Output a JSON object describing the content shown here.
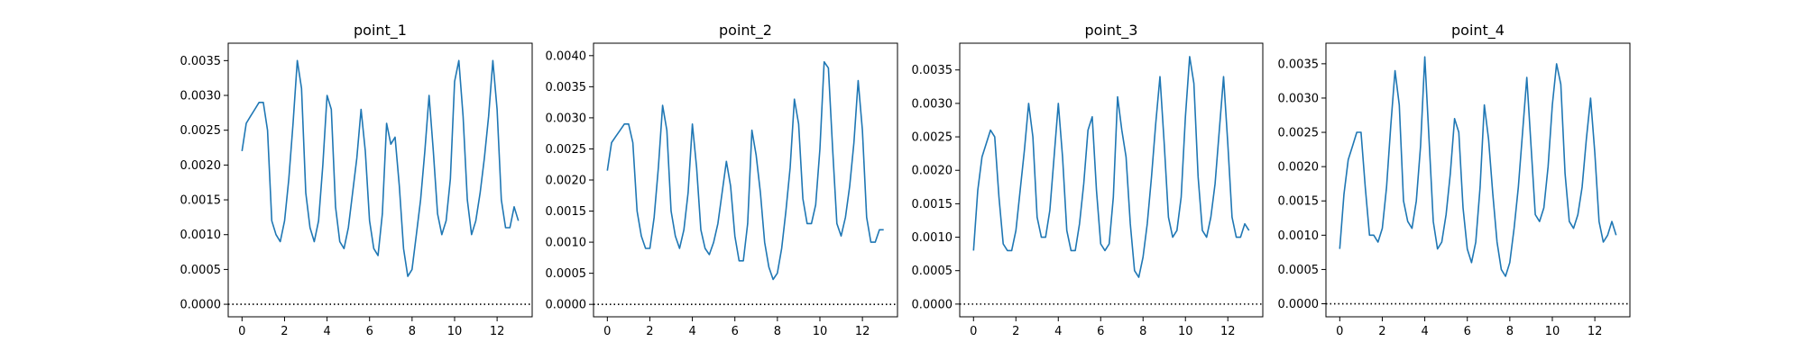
{
  "chart_data": [
    {
      "type": "line",
      "title": "point_1",
      "xlabel": "",
      "ylabel": "",
      "xlim": [
        -0.65,
        13.65
      ],
      "ylim": [
        -0.00018,
        0.00375
      ],
      "x_ticks": [
        0,
        2,
        4,
        6,
        8,
        10,
        12
      ],
      "x_tick_labels": [
        "0",
        "2",
        "4",
        "6",
        "8",
        "10",
        "12"
      ],
      "y_ticks": [
        0,
        0.0005,
        0.001,
        0.0015,
        0.002,
        0.0025,
        0.003,
        0.0035
      ],
      "y_tick_labels": [
        "0.0000",
        "0.0005",
        "0.0010",
        "0.0015",
        "0.0020",
        "0.0025",
        "0.0030",
        "0.0035"
      ],
      "grid": false,
      "series_color": "#1f77b4",
      "reference_line": {
        "y": 0,
        "style": "dotted",
        "color": "#000000"
      },
      "series": [
        {
          "x": [
            0,
            0.2,
            0.4,
            0.6,
            0.8,
            1.0,
            1.2,
            1.4,
            1.6,
            1.8,
            2.0,
            2.2,
            2.4,
            2.6,
            2.8,
            3.0,
            3.2,
            3.4,
            3.6,
            3.8,
            4.0,
            4.2,
            4.4,
            4.6,
            4.8,
            5.0,
            5.2,
            5.4,
            5.6,
            5.8,
            6.0,
            6.2,
            6.4,
            6.6,
            6.8,
            7.0,
            7.2,
            7.4,
            7.6,
            7.8,
            8.0,
            8.2,
            8.4,
            8.6,
            8.8,
            9.0,
            9.2,
            9.4,
            9.6,
            9.8,
            10.0,
            10.2,
            10.4,
            10.6,
            10.8,
            11.0,
            11.2,
            11.4,
            11.6,
            11.8,
            12.0,
            12.2,
            12.4,
            12.6,
            12.8,
            13.0
          ],
          "values": [
            0.0022,
            0.0026,
            0.0027,
            0.0028,
            0.0029,
            0.0029,
            0.0025,
            0.0012,
            0.001,
            0.0009,
            0.0012,
            0.0018,
            0.0026,
            0.0035,
            0.0031,
            0.0016,
            0.0011,
            0.0009,
            0.0012,
            0.002,
            0.003,
            0.0028,
            0.0014,
            0.0009,
            0.0008,
            0.0011,
            0.0016,
            0.0021,
            0.0028,
            0.0022,
            0.0012,
            0.0008,
            0.0007,
            0.0013,
            0.0026,
            0.0023,
            0.0024,
            0.0017,
            0.0008,
            0.0004,
            0.0005,
            0.001,
            0.0015,
            0.0022,
            0.003,
            0.0022,
            0.0013,
            0.001,
            0.0012,
            0.0018,
            0.0032,
            0.0035,
            0.0027,
            0.0015,
            0.001,
            0.0012,
            0.0016,
            0.0021,
            0.0027,
            0.0035,
            0.0028,
            0.0015,
            0.0011,
            0.0011,
            0.0014,
            0.0012
          ]
        }
      ]
    },
    {
      "type": "line",
      "title": "point_2",
      "xlabel": "",
      "ylabel": "",
      "xlim": [
        -0.65,
        13.65
      ],
      "ylim": [
        -0.0002,
        0.0042
      ],
      "x_ticks": [
        0,
        2,
        4,
        6,
        8,
        10,
        12
      ],
      "x_tick_labels": [
        "0",
        "2",
        "4",
        "6",
        "8",
        "10",
        "12"
      ],
      "y_ticks": [
        0,
        0.0005,
        0.001,
        0.0015,
        0.002,
        0.0025,
        0.003,
        0.0035,
        0.004
      ],
      "y_tick_labels": [
        "0.0000",
        "0.0005",
        "0.0010",
        "0.0015",
        "0.0020",
        "0.0025",
        "0.0030",
        "0.0035",
        "0.0040"
      ],
      "grid": false,
      "series_color": "#1f77b4",
      "reference_line": {
        "y": 0,
        "style": "dotted",
        "color": "#000000"
      },
      "series": [
        {
          "x": [
            0,
            0.2,
            0.4,
            0.6,
            0.8,
            1.0,
            1.2,
            1.4,
            1.6,
            1.8,
            2.0,
            2.2,
            2.4,
            2.6,
            2.8,
            3.0,
            3.2,
            3.4,
            3.6,
            3.8,
            4.0,
            4.2,
            4.4,
            4.6,
            4.8,
            5.0,
            5.2,
            5.4,
            5.6,
            5.8,
            6.0,
            6.2,
            6.4,
            6.6,
            6.8,
            7.0,
            7.2,
            7.4,
            7.6,
            7.8,
            8.0,
            8.2,
            8.4,
            8.6,
            8.8,
            9.0,
            9.2,
            9.4,
            9.6,
            9.8,
            10.0,
            10.2,
            10.4,
            10.6,
            10.8,
            11.0,
            11.2,
            11.4,
            11.6,
            11.8,
            12.0,
            12.2,
            12.4,
            12.6,
            12.8,
            13.0
          ],
          "values": [
            0.00215,
            0.0026,
            0.0027,
            0.0028,
            0.0029,
            0.0029,
            0.0026,
            0.0015,
            0.0011,
            0.0009,
            0.0009,
            0.0014,
            0.0022,
            0.0032,
            0.0028,
            0.0015,
            0.0011,
            0.0009,
            0.0012,
            0.0018,
            0.0029,
            0.0022,
            0.0012,
            0.0009,
            0.0008,
            0.001,
            0.0013,
            0.0018,
            0.0023,
            0.0019,
            0.0011,
            0.0007,
            0.0007,
            0.0013,
            0.0028,
            0.0024,
            0.0018,
            0.001,
            0.0006,
            0.0004,
            0.0005,
            0.0009,
            0.0015,
            0.0022,
            0.0033,
            0.0029,
            0.0017,
            0.0013,
            0.0013,
            0.0016,
            0.0025,
            0.0039,
            0.0038,
            0.0025,
            0.0013,
            0.0011,
            0.0014,
            0.0019,
            0.0026,
            0.0036,
            0.0028,
            0.0014,
            0.001,
            0.001,
            0.0012,
            0.0012
          ]
        }
      ]
    },
    {
      "type": "line",
      "title": "point_3",
      "xlabel": "",
      "ylabel": "",
      "xlim": [
        -0.65,
        13.65
      ],
      "ylim": [
        -0.00019,
        0.0039
      ],
      "x_ticks": [
        0,
        2,
        4,
        6,
        8,
        10,
        12
      ],
      "x_tick_labels": [
        "0",
        "2",
        "4",
        "6",
        "8",
        "10",
        "12"
      ],
      "y_ticks": [
        0,
        0.0005,
        0.001,
        0.0015,
        0.002,
        0.0025,
        0.003,
        0.0035
      ],
      "y_tick_labels": [
        "0.0000",
        "0.0005",
        "0.0010",
        "0.0015",
        "0.0020",
        "0.0025",
        "0.0030",
        "0.0035"
      ],
      "grid": false,
      "series_color": "#1f77b4",
      "reference_line": {
        "y": 0,
        "style": "dotted",
        "color": "#000000"
      },
      "series": [
        {
          "x": [
            0,
            0.2,
            0.4,
            0.6,
            0.8,
            1.0,
            1.2,
            1.4,
            1.6,
            1.8,
            2.0,
            2.2,
            2.4,
            2.6,
            2.8,
            3.0,
            3.2,
            3.4,
            3.6,
            3.8,
            4.0,
            4.2,
            4.4,
            4.6,
            4.8,
            5.0,
            5.2,
            5.4,
            5.6,
            5.8,
            6.0,
            6.2,
            6.4,
            6.6,
            6.8,
            7.0,
            7.2,
            7.4,
            7.6,
            7.8,
            8.0,
            8.2,
            8.4,
            8.6,
            8.8,
            9.0,
            9.2,
            9.4,
            9.6,
            9.8,
            10.0,
            10.2,
            10.4,
            10.6,
            10.8,
            11.0,
            11.2,
            11.4,
            11.6,
            11.8,
            12.0,
            12.2,
            12.4,
            12.6,
            12.8,
            13.0
          ],
          "values": [
            0.0008,
            0.0017,
            0.0022,
            0.0024,
            0.0026,
            0.0025,
            0.0016,
            0.0009,
            0.0008,
            0.0008,
            0.0011,
            0.0017,
            0.0023,
            0.003,
            0.0025,
            0.0013,
            0.001,
            0.001,
            0.0014,
            0.0022,
            0.003,
            0.0022,
            0.0011,
            0.0008,
            0.0008,
            0.0012,
            0.0018,
            0.0026,
            0.0028,
            0.0017,
            0.0009,
            0.0008,
            0.0009,
            0.0016,
            0.0031,
            0.0026,
            0.0022,
            0.0012,
            0.0005,
            0.0004,
            0.0007,
            0.0012,
            0.0019,
            0.0027,
            0.0034,
            0.0024,
            0.0013,
            0.001,
            0.0011,
            0.0016,
            0.0028,
            0.0037,
            0.0033,
            0.0019,
            0.0011,
            0.001,
            0.0013,
            0.0018,
            0.0026,
            0.0034,
            0.0024,
            0.0013,
            0.001,
            0.001,
            0.0012,
            0.0011
          ]
        }
      ]
    },
    {
      "type": "line",
      "title": "point_4",
      "xlabel": "",
      "ylabel": "",
      "xlim": [
        -0.65,
        13.65
      ],
      "ylim": [
        -0.00019,
        0.0038
      ],
      "x_ticks": [
        0,
        2,
        4,
        6,
        8,
        10,
        12
      ],
      "x_tick_labels": [
        "0",
        "2",
        "4",
        "6",
        "8",
        "10",
        "12"
      ],
      "y_ticks": [
        0,
        0.0005,
        0.001,
        0.0015,
        0.002,
        0.0025,
        0.003,
        0.0035
      ],
      "y_tick_labels": [
        "0.0000",
        "0.0005",
        "0.0010",
        "0.0015",
        "0.0020",
        "0.0025",
        "0.0030",
        "0.0035"
      ],
      "grid": false,
      "series_color": "#1f77b4",
      "reference_line": {
        "y": 0,
        "style": "dotted",
        "color": "#000000"
      },
      "series": [
        {
          "x": [
            0,
            0.2,
            0.4,
            0.6,
            0.8,
            1.0,
            1.2,
            1.4,
            1.6,
            1.8,
            2.0,
            2.2,
            2.4,
            2.6,
            2.8,
            3.0,
            3.2,
            3.4,
            3.6,
            3.8,
            4.0,
            4.2,
            4.4,
            4.6,
            4.8,
            5.0,
            5.2,
            5.4,
            5.6,
            5.8,
            6.0,
            6.2,
            6.4,
            6.6,
            6.8,
            7.0,
            7.2,
            7.4,
            7.6,
            7.8,
            8.0,
            8.2,
            8.4,
            8.6,
            8.8,
            9.0,
            9.2,
            9.4,
            9.6,
            9.8,
            10.0,
            10.2,
            10.4,
            10.6,
            10.8,
            11.0,
            11.2,
            11.4,
            11.6,
            11.8,
            12.0,
            12.2,
            12.4,
            12.6,
            12.8,
            13.0
          ],
          "values": [
            0.0008,
            0.0016,
            0.0021,
            0.0023,
            0.0025,
            0.0025,
            0.0017,
            0.001,
            0.001,
            0.0009,
            0.0011,
            0.0017,
            0.0026,
            0.0034,
            0.0029,
            0.0015,
            0.0012,
            0.0011,
            0.0015,
            0.0023,
            0.0036,
            0.0024,
            0.0012,
            0.0008,
            0.0009,
            0.0013,
            0.0019,
            0.0027,
            0.0025,
            0.0014,
            0.0008,
            0.0006,
            0.0009,
            0.0017,
            0.0029,
            0.0024,
            0.0016,
            0.0009,
            0.0005,
            0.0004,
            0.0006,
            0.0011,
            0.0017,
            0.0025,
            0.0033,
            0.0023,
            0.0013,
            0.0012,
            0.0014,
            0.002,
            0.0029,
            0.0035,
            0.0032,
            0.0019,
            0.0012,
            0.0011,
            0.0013,
            0.0017,
            0.0024,
            0.003,
            0.0022,
            0.0012,
            0.0009,
            0.001,
            0.0012,
            0.001
          ]
        }
      ]
    }
  ]
}
